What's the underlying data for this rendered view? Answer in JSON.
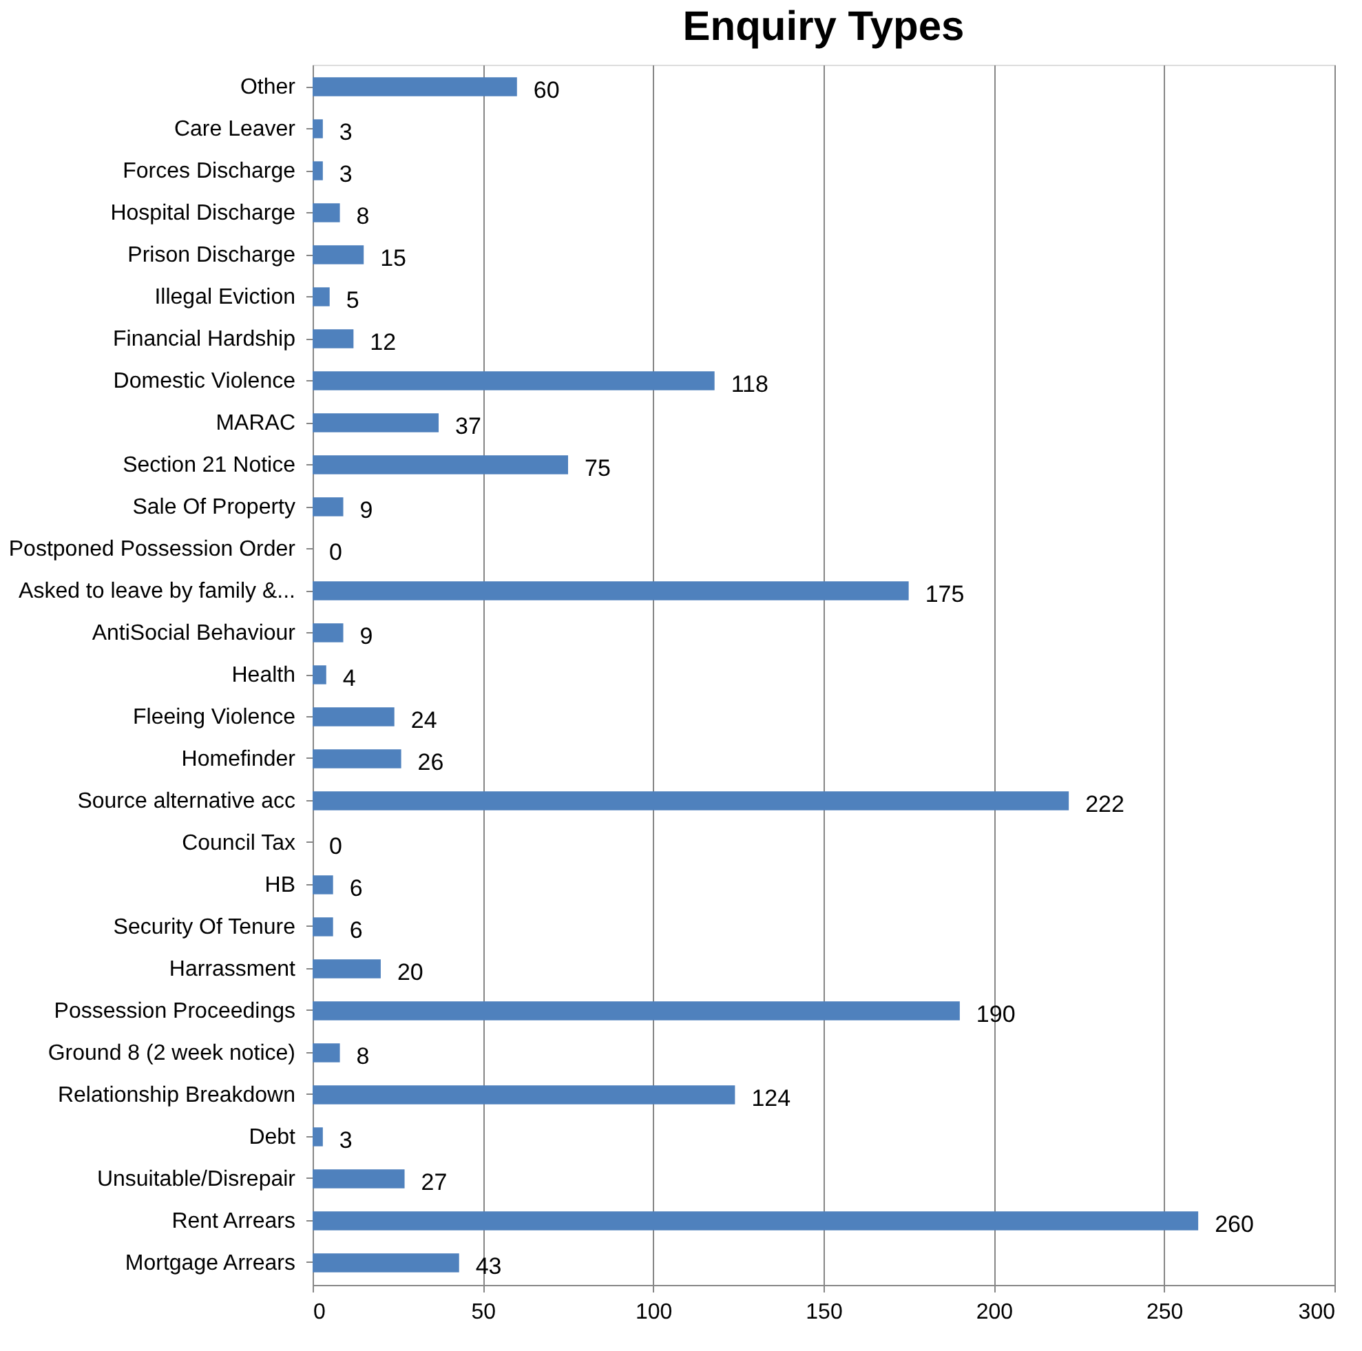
{
  "chart_data": {
    "type": "bar",
    "orientation": "horizontal",
    "title": "Enquiry Types",
    "categories": [
      "Other",
      "Care Leaver",
      "Forces Discharge",
      "Hospital Discharge",
      "Prison Discharge",
      "Illegal Eviction",
      "Financial Hardship",
      "Domestic Violence",
      "MARAC",
      "Section 21 Notice",
      "Sale Of Property",
      "Postponed Possession Order",
      "Asked to leave by family &...",
      "AntiSocial Behaviour",
      "Health",
      "Fleeing Violence",
      "Homefinder",
      "Source alternative acc",
      "Council Tax",
      "HB",
      "Security Of Tenure",
      "Harrassment",
      "Possession Proceedings",
      "Ground 8 (2 week notice)",
      "Relationship Breakdown",
      "Debt",
      "Unsuitable/Disrepair",
      "Rent Arrears",
      "Mortgage Arrears"
    ],
    "values": [
      60,
      3,
      3,
      8,
      15,
      5,
      12,
      118,
      37,
      75,
      9,
      0,
      175,
      9,
      4,
      24,
      26,
      222,
      0,
      6,
      6,
      20,
      190,
      8,
      124,
      3,
      27,
      260,
      43
    ],
    "color": "#4f81bd",
    "xlim": [
      0,
      300
    ],
    "xticks": [
      0,
      50,
      100,
      150,
      200,
      250,
      300
    ],
    "grid": "x",
    "data_labels": true
  }
}
